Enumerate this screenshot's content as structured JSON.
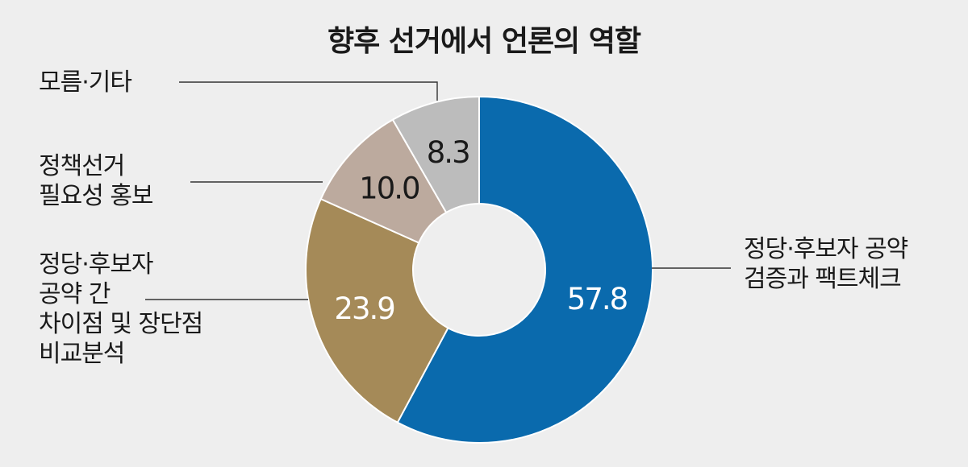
{
  "chart_data": {
    "type": "pie",
    "title": "향후 선거에서 언론의 역할",
    "categories": [
      "정당·후보자 공약 검증과 팩트체크",
      "정당·후보자 공약 간 차이점 및 장단점 비교분석",
      "정책선거 필요성 홍보",
      "모름·기타"
    ],
    "label_lines": [
      [
        "정당·후보자 공약",
        "검증과 팩트체크"
      ],
      [
        "정당·후보자",
        "공약 간",
        "차이점 및 장단점",
        "비교분석"
      ],
      [
        "정책선거",
        "필요성 홍보"
      ],
      [
        "모름·기타"
      ]
    ],
    "values": [
      57.8,
      23.9,
      10.0,
      8.3
    ],
    "value_labels": [
      "57.8",
      "23.9",
      "10.0",
      "8.3"
    ],
    "colors": [
      "#0a6aad",
      "#a58a58",
      "#bcaa9e",
      "#bcbcbc"
    ],
    "value_label_colors": [
      "#ffffff",
      "#ffffff",
      "#1a1a1a",
      "#1a1a1a"
    ],
    "hole": true,
    "legend": "none",
    "start": "top",
    "direction": "clockwise"
  }
}
